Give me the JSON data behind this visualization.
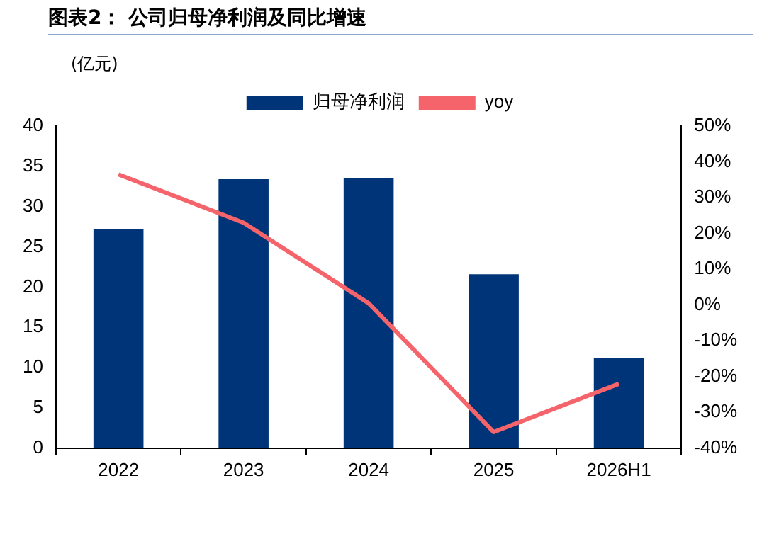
{
  "chart_data": {
    "type": "bar",
    "title": "图表2：  公司归母净利润及同比增速",
    "ylabel": "(亿元)",
    "categories": [
      "2022",
      "2023",
      "2024",
      "2025",
      "2026H1"
    ],
    "series": [
      {
        "name": "归母净利润",
        "color": "#003478",
        "values": [
          27.2,
          33.4,
          33.5,
          21.6,
          11.2
        ]
      },
      {
        "name": "yoy",
        "type": "line",
        "axis": "y2",
        "color": "#f4646a",
        "values": [
          36.5,
          23,
          0.5,
          -35.5,
          -22
        ]
      }
    ],
    "ylim": [
      0,
      40
    ],
    "yticks": [
      0,
      5,
      10,
      15,
      20,
      25,
      30,
      35,
      40
    ],
    "y2lim": [
      -40,
      50
    ],
    "y2ticks": [
      {
        "value": -40,
        "label": "-40%"
      },
      {
        "value": -30,
        "label": "-30%"
      },
      {
        "value": -20,
        "label": "-20%"
      },
      {
        "value": -10,
        "label": "-10%"
      },
      {
        "value": 0,
        "label": "0%"
      },
      {
        "value": 10,
        "label": "10%"
      },
      {
        "value": 20,
        "label": "20%"
      },
      {
        "value": 30,
        "label": "30%"
      },
      {
        "value": 40,
        "label": "40%"
      },
      {
        "value": 50,
        "label": "50%"
      }
    ],
    "grid": false,
    "legend": "top",
    "marker": "none",
    "line_style": "solid"
  }
}
